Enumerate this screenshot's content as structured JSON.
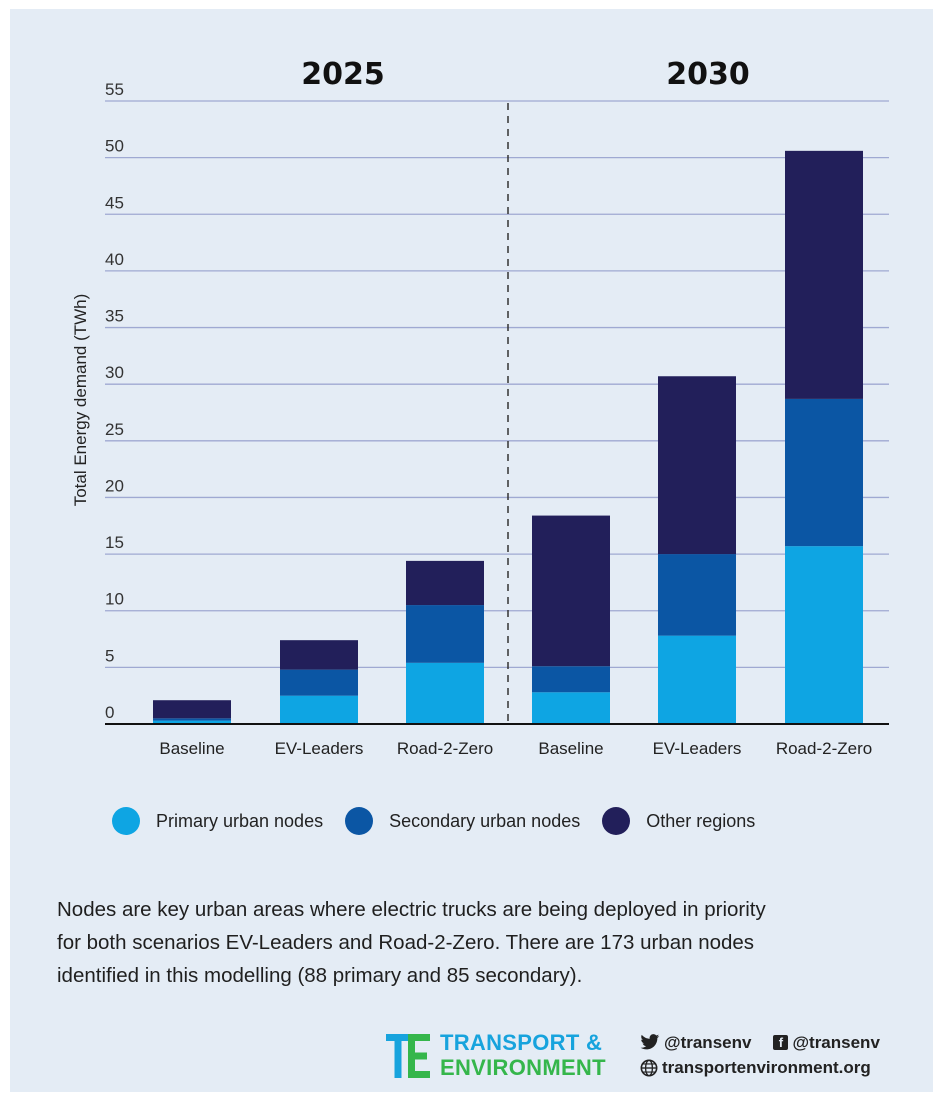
{
  "chart_data": {
    "type": "bar",
    "stacked": true,
    "ylabel": "Total Energy demand (TWh)",
    "ylim": [
      0,
      55
    ],
    "yticks": [
      0,
      5,
      10,
      15,
      20,
      25,
      30,
      35,
      40,
      45,
      50,
      55
    ],
    "grid": true,
    "groups": [
      {
        "label": "2025",
        "categories": [
          "Baseline",
          "EV-Leaders",
          "Road-2-Zero"
        ]
      },
      {
        "label": "2030",
        "categories": [
          "Baseline",
          "EV-Leaders",
          "Road-2-Zero"
        ]
      }
    ],
    "categories": [
      "Baseline",
      "EV-Leaders",
      "Road-2-Zero",
      "Baseline",
      "EV-Leaders",
      "Road-2-Zero"
    ],
    "series": [
      {
        "name": "Primary urban nodes",
        "color": "#0ea5e3",
        "values": [
          0.3,
          2.5,
          5.4,
          2.8,
          7.8,
          15.7
        ]
      },
      {
        "name": "Secondary urban nodes",
        "color": "#0b56a4",
        "values": [
          0.2,
          2.3,
          5.1,
          2.3,
          7.2,
          13.0
        ]
      },
      {
        "name": "Other regions",
        "color": "#221f5a",
        "values": [
          1.6,
          2.6,
          3.9,
          13.3,
          15.7,
          21.9
        ]
      }
    ],
    "legend_position": "bottom"
  },
  "caption": {
    "line1": "Nodes are key urban areas where electric trucks are being deployed in priority",
    "line2": "for both scenarios EV-Leaders and Road-2-Zero. There are 173 urban nodes",
    "line3": "identified in this modelling (88 primary and 85 secondary)."
  },
  "footer": {
    "logo_line1": "TRANSPORT &",
    "logo_line2": "ENVIRONMENT",
    "twitter": "@transenv",
    "facebook": "@transenv",
    "website": "transportenvironment.org",
    "icons": [
      "twitter-icon",
      "facebook-icon",
      "globe-icon"
    ]
  }
}
